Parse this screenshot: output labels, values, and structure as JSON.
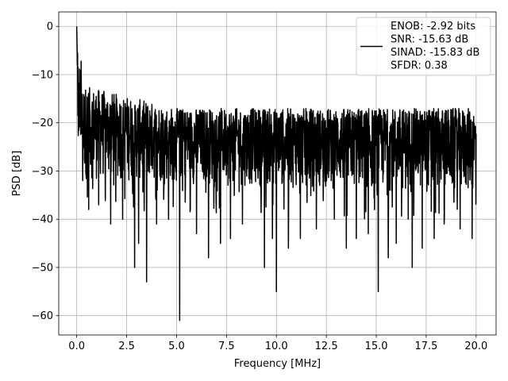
{
  "chart_data": {
    "type": "line",
    "xlabel": "Frequency [MHz]",
    "ylabel": "PSD [dB]",
    "xlim": [
      -0.9,
      21.0
    ],
    "ylim": [
      -64.0,
      3.0
    ],
    "xticks": [
      0.0,
      2.5,
      5.0,
      7.5,
      10.0,
      12.5,
      15.0,
      17.5,
      20.0
    ],
    "xtick_labels": [
      "0.0",
      "2.5",
      "5.0",
      "7.5",
      "10.0",
      "12.5",
      "15.0",
      "17.5",
      "20.0"
    ],
    "yticks": [
      0,
      -10,
      -20,
      -30,
      -40,
      -50,
      -60
    ],
    "ytick_labels": [
      "0",
      "−10",
      "−20",
      "−30",
      "−40",
      "−50",
      "−60"
    ],
    "grid": true,
    "legend_position": "top-right",
    "legend": {
      "lines": [
        "ENOB: -2.92 bits",
        "SNR: -15.63 dB",
        "SINAD: -15.83 dB",
        "SFDR: 0.38"
      ]
    },
    "series": [
      {
        "color": "#000000",
        "x_range": [
          0.0,
          20.0
        ],
        "peak": {
          "x": 0.0,
          "y": 0.0
        },
        "notable_dips": [
          {
            "x": 0.3,
            "y": -32
          },
          {
            "x": 0.6,
            "y": -38
          },
          {
            "x": 1.1,
            "y": -37
          },
          {
            "x": 1.7,
            "y": -41
          },
          {
            "x": 2.3,
            "y": -40
          },
          {
            "x": 2.9,
            "y": -50
          },
          {
            "x": 3.1,
            "y": -45
          },
          {
            "x": 3.5,
            "y": -53
          },
          {
            "x": 4.0,
            "y": -41
          },
          {
            "x": 4.6,
            "y": -40
          },
          {
            "x": 5.15,
            "y": -61
          },
          {
            "x": 6.0,
            "y": -43
          },
          {
            "x": 6.6,
            "y": -48
          },
          {
            "x": 7.2,
            "y": -45
          },
          {
            "x": 7.7,
            "y": -44
          },
          {
            "x": 8.3,
            "y": -41
          },
          {
            "x": 9.4,
            "y": -50
          },
          {
            "x": 9.8,
            "y": -44
          },
          {
            "x": 10.0,
            "y": -55
          },
          {
            "x": 10.6,
            "y": -46
          },
          {
            "x": 11.2,
            "y": -44
          },
          {
            "x": 12.0,
            "y": -42
          },
          {
            "x": 12.9,
            "y": -40
          },
          {
            "x": 13.5,
            "y": -46
          },
          {
            "x": 14.0,
            "y": -44
          },
          {
            "x": 14.6,
            "y": -43
          },
          {
            "x": 15.1,
            "y": -55
          },
          {
            "x": 15.6,
            "y": -48
          },
          {
            "x": 16.0,
            "y": -45
          },
          {
            "x": 16.8,
            "y": -50
          },
          {
            "x": 17.3,
            "y": -46
          },
          {
            "x": 17.9,
            "y": -44
          },
          {
            "x": 18.4,
            "y": -41
          },
          {
            "x": 19.2,
            "y": -42
          },
          {
            "x": 19.8,
            "y": -44
          }
        ],
        "envelope": {
          "comment_free": true,
          "upper_start": -12,
          "upper_end": -17,
          "lower_start": -32,
          "lower_end": -35
        }
      }
    ]
  }
}
